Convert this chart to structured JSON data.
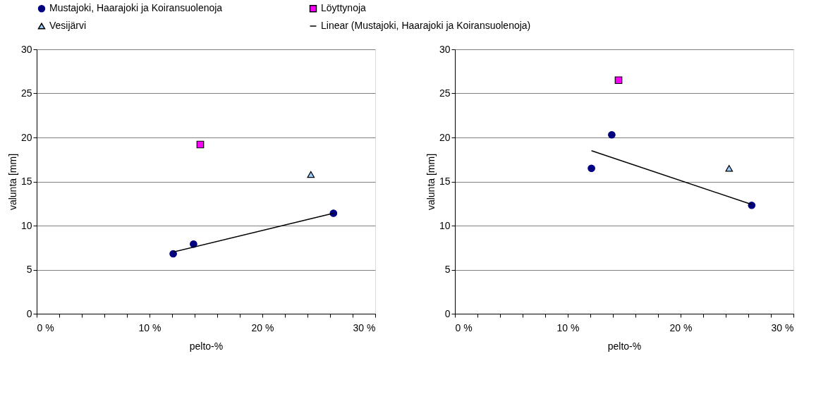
{
  "chart_data": [
    {
      "type": "scatter",
      "xlabel": "pelto-%",
      "ylabel": "valunta [mm]",
      "xlim": [
        0,
        30
      ],
      "ylim": [
        0,
        30
      ],
      "xticks": [
        {
          "value": 0,
          "label": "0 %"
        },
        {
          "value": 2,
          "label": null
        },
        {
          "value": 4,
          "label": null
        },
        {
          "value": 6,
          "label": null
        },
        {
          "value": 8,
          "label": null
        },
        {
          "value": 10,
          "label": "10 %"
        },
        {
          "value": 12,
          "label": null
        },
        {
          "value": 14,
          "label": null
        },
        {
          "value": 16,
          "label": null
        },
        {
          "value": 18,
          "label": null
        },
        {
          "value": 20,
          "label": "20 %"
        },
        {
          "value": 22,
          "label": null
        },
        {
          "value": 24,
          "label": null
        },
        {
          "value": 26,
          "label": null
        },
        {
          "value": 28,
          "label": null
        },
        {
          "value": 30,
          "label": "30 %"
        }
      ],
      "yticks": [
        0,
        5,
        10,
        15,
        20,
        25,
        30
      ],
      "grid": "y",
      "legend": "top",
      "series": [
        {
          "name": "Mustajoki, Haarajoki ja Koiransuolenoja",
          "color": "#000080",
          "marker": "circle",
          "x": [
            12.1,
            13.9,
            26.3
          ],
          "values": [
            6.8,
            7.9,
            11.4
          ]
        },
        {
          "name": "Löyttynoja",
          "color": "#ff00ff",
          "marker": "square",
          "x": [
            14.5
          ],
          "values": [
            19.2
          ]
        },
        {
          "name": "Vesijärvi",
          "color": "#99ccff",
          "marker": "triangle",
          "x": [
            24.3
          ],
          "values": [
            15.8
          ]
        },
        {
          "name": "Linear (Mustajoki, Haarajoki ja Koiransuolenoja)",
          "type": "line",
          "color": "#000000",
          "marker": "none",
          "x": [
            12.1,
            26.3
          ],
          "values": [
            7.0,
            11.4
          ]
        }
      ]
    },
    {
      "type": "scatter",
      "xlabel": "pelto-%",
      "ylabel": "valunta [mm]",
      "xlim": [
        0,
        30
      ],
      "ylim": [
        0,
        30
      ],
      "xticks": [
        {
          "value": 0,
          "label": "0 %"
        },
        {
          "value": 2,
          "label": null
        },
        {
          "value": 4,
          "label": null
        },
        {
          "value": 6,
          "label": null
        },
        {
          "value": 8,
          "label": null
        },
        {
          "value": 10,
          "label": "10 %"
        },
        {
          "value": 12,
          "label": null
        },
        {
          "value": 14,
          "label": null
        },
        {
          "value": 16,
          "label": null
        },
        {
          "value": 18,
          "label": null
        },
        {
          "value": 20,
          "label": "20 %"
        },
        {
          "value": 22,
          "label": null
        },
        {
          "value": 24,
          "label": null
        },
        {
          "value": 26,
          "label": null
        },
        {
          "value": 28,
          "label": null
        },
        {
          "value": 30,
          "label": "30 %"
        }
      ],
      "yticks": [
        0,
        5,
        10,
        15,
        20,
        25,
        30
      ],
      "grid": "y",
      "legend": "top",
      "series": [
        {
          "name": "Mustajoki, Haarajoki ja Koiransuolenoja",
          "color": "#000080",
          "marker": "circle",
          "x": [
            12.1,
            13.9,
            26.3
          ],
          "values": [
            16.5,
            20.3,
            12.3
          ]
        },
        {
          "name": "Löyttynoja",
          "color": "#ff00ff",
          "marker": "square",
          "x": [
            14.5
          ],
          "values": [
            26.5
          ]
        },
        {
          "name": "Vesijärvi",
          "color": "#99ccff",
          "marker": "triangle",
          "x": [
            24.3
          ],
          "values": [
            16.5
          ]
        },
        {
          "name": "Linear (Mustajoki, Haarajoki ja Koiransuolenoja)",
          "type": "line",
          "color": "#000000",
          "marker": "none",
          "x": [
            12.1,
            26.3
          ],
          "values": [
            18.5,
            12.4
          ]
        }
      ]
    }
  ]
}
